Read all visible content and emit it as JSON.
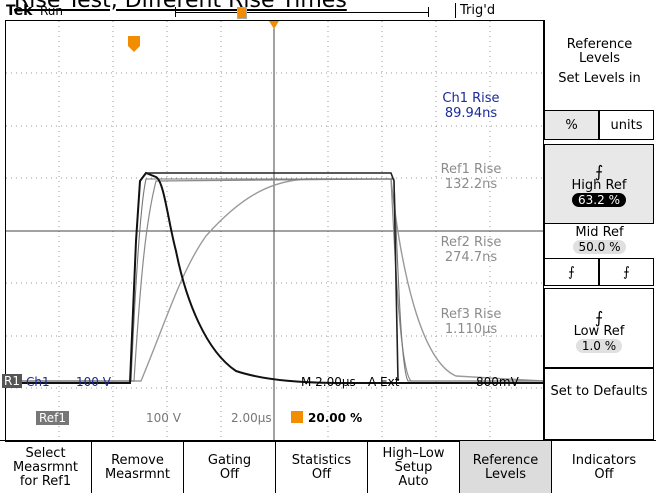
{
  "page_title": "Rise Test, Different Rise Times",
  "status": {
    "brand": "Tek",
    "run_state": "Run",
    "trigger_state": "Trig'd"
  },
  "measurements": {
    "ch1": {
      "label": "Ch1 Rise",
      "value": "89.94ns"
    },
    "ref1": {
      "label": "Ref1 Rise",
      "value": "132.2ns"
    },
    "ref2": {
      "label": "Ref2 Rise",
      "value": "274.7ns"
    },
    "ref3": {
      "label": "Ref3 Rise",
      "value": "1.110µs"
    }
  },
  "readout": {
    "ground_marker": "R1",
    "ch1": "Ch1",
    "ch1_scale": "100 V",
    "timebase": "M 2.00µs",
    "trigger_source": "A  Ext",
    "trigger_level": "800mV",
    "ref1": "Ref1",
    "ref1_scale": "100 V",
    "ref1_time": "2.00µs",
    "trigger_position": "20.00 %"
  },
  "side_menu": {
    "title": "Reference Levels",
    "set_levels": "Set Levels in",
    "opt_percent": "%",
    "opt_units": "units",
    "high_ref": {
      "label": "High Ref",
      "value": "63.2 %"
    },
    "mid_ref": {
      "label": "Mid Ref",
      "value": "50.0 %"
    },
    "low_ref": {
      "label": "Low Ref",
      "value": "1.0 %"
    },
    "defaults": "Set to Defaults"
  },
  "bottom_menu": [
    {
      "line1": "Select",
      "line2": "Measrmnt",
      "line3": "for Ref1"
    },
    {
      "line1": "Remove",
      "line2": "Measrmnt",
      "line3": ""
    },
    {
      "line1": "Gating",
      "line2": "Off",
      "line3": ""
    },
    {
      "line1": "Statistics",
      "line2": "Off",
      "line3": ""
    },
    {
      "line1": "High–Low",
      "line2": "Setup",
      "line3": "Auto"
    },
    {
      "line1": "Reference",
      "line2": "Levels",
      "line3": ""
    },
    {
      "line1": "Indicators",
      "line2": "Off",
      "line3": ""
    }
  ],
  "colors": {
    "trigger_marker": "#f28c00",
    "ch1": "#1a2a9a",
    "ref": "#8c8c8c"
  }
}
